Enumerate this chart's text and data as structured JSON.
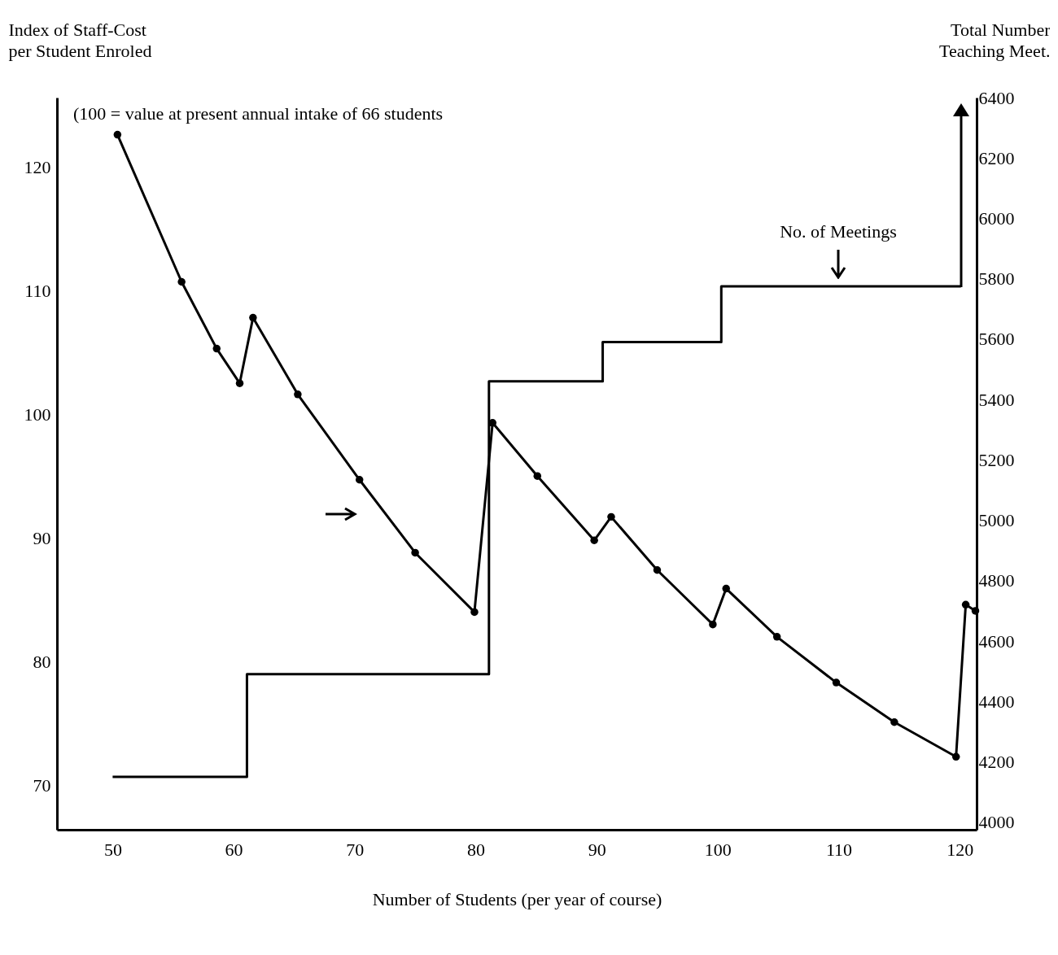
{
  "chart_data": {
    "type": "line",
    "xlabel": "Number of Students (per year of course)",
    "ylabel": "Index of Staff-Cost per Student Enroled",
    "y2label": "Total Number Teaching Meet.",
    "xlim": [
      45.4,
      121.4
    ],
    "xticks": [
      50,
      60,
      70,
      80,
      90,
      100,
      110,
      120
    ],
    "ylim": [
      66.4,
      125.6
    ],
    "yticks": [
      70,
      80,
      90,
      100,
      110,
      120
    ],
    "y2lim": [
      3975,
      6400
    ],
    "y2ticks": [
      4000,
      4200,
      4400,
      4600,
      4800,
      5000,
      5200,
      5400,
      5600,
      5800,
      6000,
      6200,
      6400
    ],
    "grid": false,
    "line_style": "solid",
    "annotations": [
      "(100 = value at present annual intake of 66 students",
      "No. of Meetings"
    ],
    "series": [
      {
        "marker": "circle",
        "color": "#000000",
        "x": [
          50.4,
          55.7,
          58.6,
          60.5,
          61.6,
          65.3,
          70.4,
          75.0,
          79.9,
          81.4,
          85.1,
          89.8,
          91.2,
          95.0,
          99.6,
          100.7,
          104.9,
          109.8,
          114.6,
          119.7,
          120.5,
          121.3
        ],
        "values": [
          122.6,
          110.7,
          105.3,
          102.5,
          107.8,
          101.6,
          94.7,
          88.8,
          84.0,
          99.3,
          95.0,
          89.8,
          91.7,
          87.4,
          83.0,
          85.9,
          82.0,
          78.3,
          75.1,
          72.3,
          84.6,
          84.1
        ]
      },
      {
        "type": "step",
        "marker": "none",
        "axis": "y2",
        "color": "#000000",
        "x": [
          50,
          61.1,
          81.1,
          90.5,
          100.3,
          120.1
        ],
        "values": [
          4150,
          4490,
          5460,
          5590,
          5775,
          5775
        ]
      }
    ]
  }
}
